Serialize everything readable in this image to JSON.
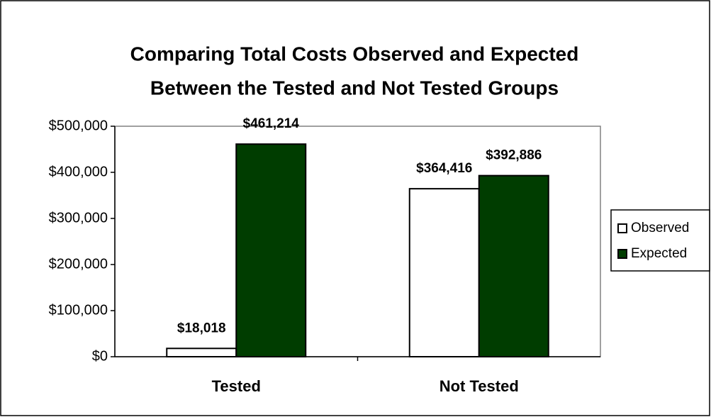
{
  "chart_data": {
    "type": "bar",
    "title": [
      "Comparing Total Costs Observed and Expected",
      "Between the Tested and Not Tested Groups"
    ],
    "categories": [
      "Tested",
      "Not Tested"
    ],
    "series": [
      {
        "name": "Observed",
        "color": "#ffffff",
        "values": [
          18018,
          364416
        ],
        "value_labels": [
          "$18,018",
          "$364,416"
        ]
      },
      {
        "name": "Expected",
        "color": "#003d00",
        "values": [
          461214,
          392886
        ],
        "value_labels": [
          "$461,214",
          "$392,886"
        ]
      }
    ],
    "ylim": [
      0,
      500000
    ],
    "yticks": [
      {
        "value": 0,
        "label": "$0"
      },
      {
        "value": 100000,
        "label": "$100,000"
      },
      {
        "value": 200000,
        "label": "$200,000"
      },
      {
        "value": 300000,
        "label": "$300,000"
      },
      {
        "value": 400000,
        "label": "$400,000"
      },
      {
        "value": 500000,
        "label": "$500,000"
      }
    ],
    "grid": false,
    "legend": "right"
  }
}
